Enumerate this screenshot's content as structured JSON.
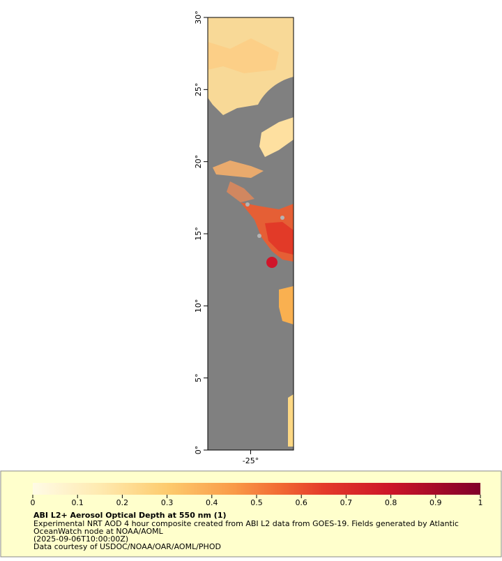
{
  "map": {
    "xlim": [
      -28,
      -22
    ],
    "ylim": [
      0,
      30
    ],
    "xticks": [
      {
        "value": -25,
        "label": "-25°"
      }
    ],
    "yticks": [
      {
        "value": 0,
        "label": "0°"
      },
      {
        "value": 5,
        "label": "5°"
      },
      {
        "value": 10,
        "label": "10°"
      },
      {
        "value": 15,
        "label": "15°"
      },
      {
        "value": 20,
        "label": "20°"
      },
      {
        "value": 25,
        "label": "25°"
      },
      {
        "value": 30,
        "label": "30°"
      }
    ]
  },
  "colorbar": {
    "lim": [
      0,
      1
    ],
    "ticks": [
      0,
      0.1,
      0.2,
      0.3,
      0.4,
      0.5,
      0.6,
      0.7,
      0.8,
      0.9,
      1
    ]
  },
  "legend": {
    "title": "ABI L2+ Aerosol Optical Depth at 550 nm (1)",
    "lines": [
      "Experimental NRT AOD 4 hour composite created from ABI L2 data from GOES-19. Fields generated by Atlantic",
      "OceanWatch node at NOAA/AOML",
      "(2025-09-06T10:00:00Z)",
      "Data courtesy of USDOC/NOAA/OAR/AOML/PHOD"
    ]
  }
}
